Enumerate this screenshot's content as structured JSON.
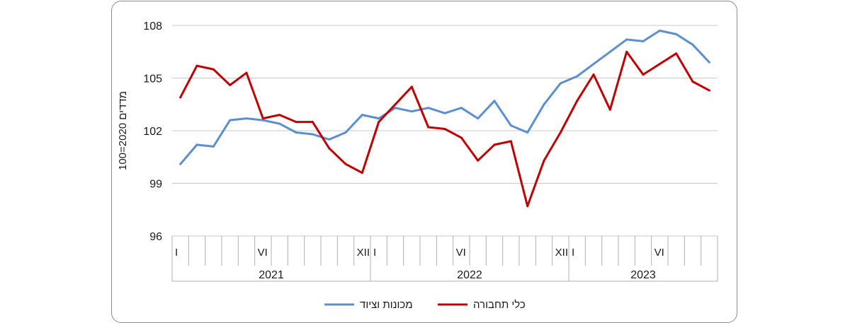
{
  "chart_data": {
    "type": "line",
    "ylabel": "מדדים 2020=100",
    "ylim": [
      96,
      108
    ],
    "yticks": [
      96,
      99,
      102,
      105,
      108
    ],
    "grid": true,
    "legend_position": "bottom",
    "years": [
      {
        "label": "2021",
        "months": [
          "I",
          "VI",
          "XII"
        ]
      },
      {
        "label": "2022",
        "months": [
          "I",
          "VI",
          "XII"
        ]
      },
      {
        "label": "2023",
        "months": [
          "I",
          "VI"
        ]
      }
    ],
    "month_tick_labels": {
      "0": "I",
      "5": "VI",
      "11": "XII"
    },
    "x": [
      "2021-01",
      "2021-02",
      "2021-03",
      "2021-04",
      "2021-05",
      "2021-06",
      "2021-07",
      "2021-08",
      "2021-09",
      "2021-10",
      "2021-11",
      "2021-12",
      "2022-01",
      "2022-02",
      "2022-03",
      "2022-04",
      "2022-05",
      "2022-06",
      "2022-07",
      "2022-08",
      "2022-09",
      "2022-10",
      "2022-11",
      "2022-12",
      "2023-01",
      "2023-02",
      "2023-03",
      "2023-04",
      "2023-05",
      "2023-06",
      "2023-07",
      "2023-08",
      "2023-09"
    ],
    "series": [
      {
        "name": "מכונות וציוד",
        "color": "#5b8fcf",
        "values": [
          100.1,
          101.2,
          101.1,
          102.6,
          102.7,
          102.6,
          102.4,
          101.9,
          101.8,
          101.5,
          101.9,
          102.9,
          102.7,
          103.3,
          103.1,
          103.3,
          103.0,
          103.3,
          102.7,
          103.7,
          102.3,
          101.9,
          103.5,
          104.7,
          105.1,
          105.8,
          106.5,
          107.2,
          107.1,
          107.7,
          107.5,
          106.9,
          105.9
        ]
      },
      {
        "name": "כלי תחבורה",
        "color": "#c00000",
        "values": [
          103.9,
          105.7,
          105.5,
          104.6,
          105.3,
          102.7,
          102.9,
          102.5,
          102.5,
          101.0,
          100.1,
          99.6,
          102.5,
          103.5,
          104.5,
          102.2,
          102.1,
          101.6,
          100.3,
          101.2,
          101.4,
          97.7,
          100.3,
          101.9,
          103.7,
          105.2,
          103.2,
          106.5,
          105.2,
          105.8,
          106.4,
          104.8,
          104.3
        ]
      }
    ]
  }
}
